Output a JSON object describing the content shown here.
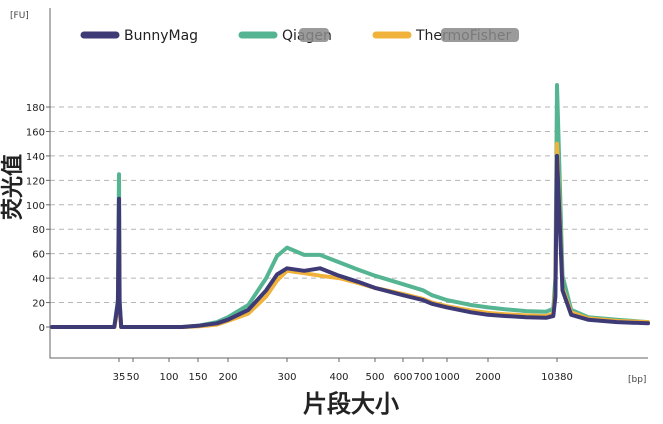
{
  "chart_data": {
    "type": "line",
    "xlabel": "片段大小",
    "ylabel": "荧光值",
    "y_unit": "[FU]",
    "x_unit": "[bp]",
    "ylim": [
      0,
      190
    ],
    "x_scale": "log (bp)",
    "grid": "horizontal dashed",
    "legend_position": "top",
    "y_ticks": [
      0,
      20,
      40,
      60,
      80,
      100,
      120,
      140,
      160,
      180
    ],
    "x_ticks": [
      "35",
      "50",
      "100",
      "150",
      "200",
      "300",
      "400",
      "500",
      "600",
      "700",
      "1000",
      "2000",
      "10380"
    ],
    "x_tick_values": [
      35,
      50,
      100,
      150,
      200,
      300,
      400,
      500,
      600,
      700,
      1000,
      2000,
      10380
    ],
    "series": [
      {
        "name": "BunnyMag",
        "color": "#3e3a76",
        "x": [
          15,
          33,
          34.5,
          35,
          35.5,
          37,
          120,
          150,
          180,
          200,
          230,
          260,
          280,
          300,
          330,
          360,
          400,
          450,
          500,
          600,
          700,
          800,
          1000,
          1500,
          2000,
          3000,
          5000,
          8000,
          9500,
          10000,
          10380,
          10800,
          11500,
          13000,
          16000,
          20000
        ],
        "y": [
          0,
          0,
          20,
          105,
          20,
          0,
          0,
          1,
          3,
          6,
          14,
          30,
          43,
          48,
          46,
          48,
          42,
          37,
          32,
          26,
          22,
          19,
          16,
          12,
          10,
          9,
          8,
          7.5,
          9,
          25,
          140,
          30,
          10,
          6,
          4,
          3
        ]
      },
      {
        "name": "Qiagen",
        "color": "#55b592",
        "x": [
          15,
          33,
          34.5,
          35,
          35.5,
          37,
          120,
          150,
          180,
          200,
          230,
          260,
          280,
          300,
          330,
          360,
          400,
          450,
          500,
          600,
          700,
          800,
          1000,
          1500,
          2000,
          3000,
          5000,
          8000,
          9500,
          10000,
          10380,
          10800,
          11500,
          13000,
          16000,
          20000
        ],
        "y": [
          0,
          0,
          22,
          125,
          22,
          0,
          0,
          1,
          4,
          8,
          18,
          40,
          58,
          65,
          59,
          59,
          53,
          47,
          42,
          35,
          30,
          26,
          22,
          18,
          16,
          14.5,
          13,
          12.5,
          15,
          40,
          198,
          42,
          14,
          8,
          6,
          4
        ]
      },
      {
        "name": "ThermoFisher",
        "color": "#f0b23a",
        "x": [
          15,
          33,
          34.5,
          35,
          35.5,
          37,
          120,
          150,
          180,
          200,
          230,
          260,
          280,
          300,
          330,
          360,
          400,
          450,
          500,
          600,
          700,
          800,
          1000,
          1500,
          2000,
          3000,
          5000,
          8000,
          9500,
          10000,
          10380,
          10800,
          11500,
          13000,
          16000,
          20000
        ],
        "y": [
          0,
          0,
          15,
          80,
          15,
          0,
          0,
          0.5,
          2,
          5,
          11,
          25,
          38,
          46,
          44,
          42,
          40,
          36,
          32,
          27,
          23,
          20,
          17,
          13.5,
          11.5,
          10.5,
          9.5,
          9,
          11,
          30,
          150,
          32,
          12,
          7,
          5,
          4
        ]
      }
    ]
  }
}
